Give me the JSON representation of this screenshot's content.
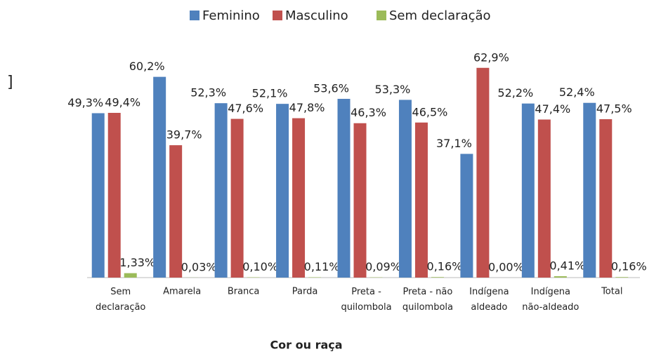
{
  "chart_data": {
    "type": "bar",
    "x_label": "Cor ou raça",
    "annotations": [
      "]"
    ],
    "categories": [
      "Sem declaração",
      "Amarela",
      "Branca",
      "Parda",
      "Preta - quilombola",
      "Preta - não quilombola",
      "Indígena aldeado",
      "Indígena não-aldeado",
      "Total"
    ],
    "series": [
      {
        "name": "Feminino",
        "color": "#4f81bd",
        "values": [
          49.3,
          60.2,
          52.3,
          52.1,
          53.6,
          53.3,
          37.1,
          52.2,
          52.4
        ],
        "value_labels": [
          "49,3%",
          "60,2%",
          "52,3%",
          "52,1%",
          "53,6%",
          "53,3%",
          "37,1%",
          "52,2%",
          "52,4%"
        ]
      },
      {
        "name": "Masculino",
        "color": "#c0504d",
        "values": [
          49.4,
          39.7,
          47.6,
          47.8,
          46.3,
          46.5,
          62.9,
          47.4,
          47.5
        ],
        "value_labels": [
          "49,4%",
          "39,7%",
          "47,6%",
          "47,8%",
          "46,3%",
          "46,5%",
          "62,9%",
          "47,4%",
          "47,5%"
        ]
      },
      {
        "name": "Sem declaração",
        "color": "#9bbb59",
        "values": [
          1.33,
          0.03,
          0.1,
          0.11,
          0.09,
          0.16,
          0.0,
          0.41,
          0.16
        ],
        "value_labels": [
          "1,33%",
          "0,03%",
          "0,10%",
          "0,11%",
          "0,09%",
          "0,16%",
          "0,00%",
          "0,41%",
          "0,16%"
        ]
      }
    ],
    "ylim": [
      0,
      70
    ],
    "legend": "top"
  }
}
